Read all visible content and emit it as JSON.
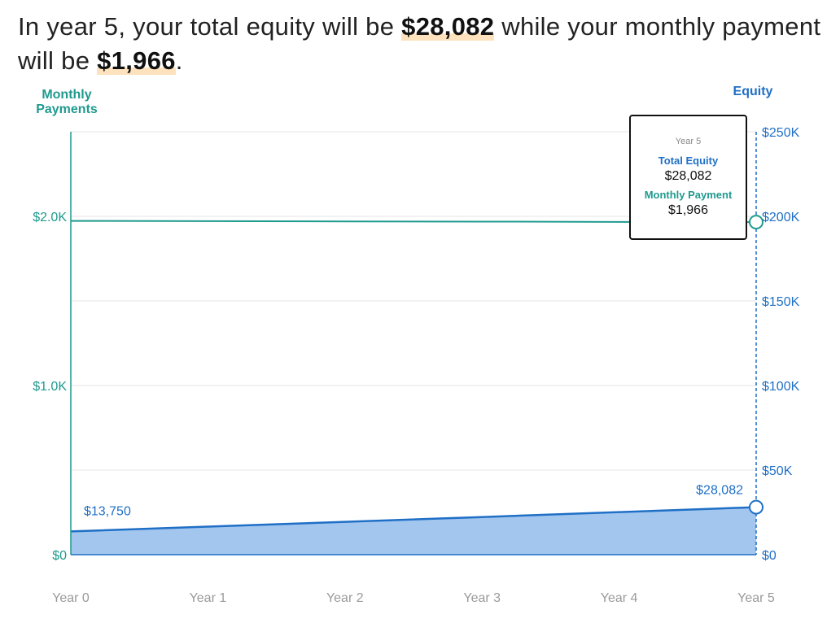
{
  "headline": {
    "part1": "In year 5, your total equity will be ",
    "equity": "$28,082",
    "part2": " while your monthly payment will be ",
    "payment": "$1,966",
    "part3": "."
  },
  "colors": {
    "payment": "#1f9a8e",
    "equity": "#1f6fc6",
    "equity_fill": "#a3c6ee",
    "grid": "#e6e6e6",
    "tick_x": "#9a9a9a",
    "highlight": "#fde2bd"
  },
  "tooltip": {
    "year": "Year 5",
    "equity_label": "Total Equity",
    "equity_value": "$28,082",
    "payment_label": "Monthly Payment",
    "payment_value": "$1,966"
  },
  "chart_data": {
    "type": "line",
    "categories": [
      "Year 0",
      "Year 1",
      "Year 2",
      "Year 3",
      "Year 4",
      "Year 5"
    ],
    "x": [
      0,
      1,
      2,
      3,
      4,
      5
    ],
    "series": [
      {
        "name": "Monthly Payments",
        "axis": "left",
        "values": [
          1973,
          1972,
          1970,
          1969,
          1967,
          1966
        ],
        "style": "line"
      },
      {
        "name": "Equity",
        "axis": "right",
        "values": [
          13750,
          16590,
          19420,
          22260,
          25170,
          28082
        ],
        "style": "area"
      }
    ],
    "left_axis": {
      "label": "Monthly Payments",
      "ylim": [
        0,
        2500
      ],
      "ticks": [
        0,
        1000,
        2000
      ],
      "tick_labels": [
        "$0",
        "$1.0K",
        "$2.0K"
      ]
    },
    "right_axis": {
      "label": "Equity",
      "ylim": [
        0,
        250000
      ],
      "ticks": [
        0,
        50000,
        100000,
        150000,
        200000,
        250000
      ],
      "tick_labels": [
        "$0",
        "$50K",
        "$100K",
        "$150K",
        "$200K",
        "$250K"
      ]
    },
    "annotations": [
      {
        "series": "Equity",
        "x": 0,
        "text": "$13,750"
      },
      {
        "series": "Equity",
        "x": 5,
        "text": "$28,082"
      }
    ],
    "highlighted_x": 5,
    "grid": true
  }
}
